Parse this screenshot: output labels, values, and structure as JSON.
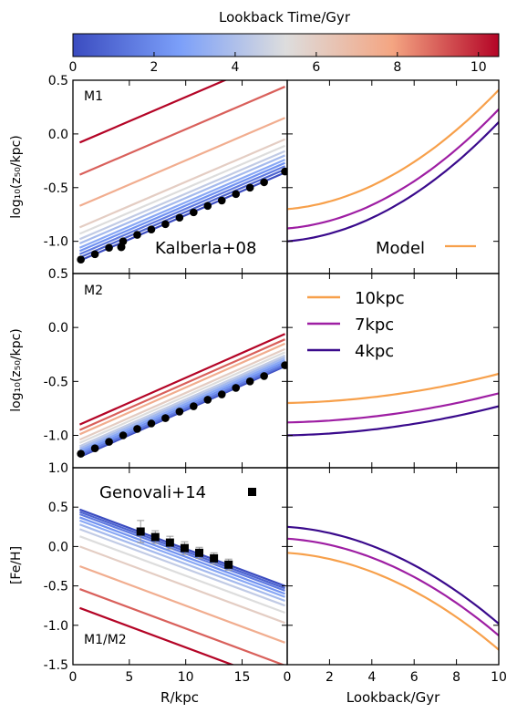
{
  "colorbar": {
    "label": "Lookback Time/Gyr",
    "range": [
      0,
      10.5
    ],
    "ticks": [
      0,
      2,
      4,
      6,
      8,
      10
    ],
    "colormap": "coolwarm",
    "colors": [
      "#3b4cc0",
      "#b4d1ff",
      "#dddddd",
      "#f4a582",
      "#b40426"
    ]
  },
  "labels": {
    "xlabel_left": "R/kpc",
    "xlabel_right": "Lookback/Gyr",
    "ylabel_z50": "log₁₀(z₅₀/kpc)",
    "ylabel_feh": "[Fe/H]"
  },
  "chart_data": [
    {
      "id": "M1-scaleheight",
      "type": "line",
      "annotation": "M1",
      "ylabel": "log₁₀(z₅₀/kpc)",
      "xlim": [
        0,
        19
      ],
      "ylim": [
        -1.3,
        0.5
      ],
      "yticks": [
        -1.0,
        -0.5,
        0.0,
        0.5
      ],
      "lines": {
        "x": [
          0.6,
          18.8
        ],
        "ages": [
          0,
          0.75,
          1.5,
          2.25,
          3,
          3.75,
          4.5,
          5.25,
          6.0,
          7.5,
          9.0,
          10.5
        ],
        "y0": [
          -1.18,
          -1.15,
          -1.12,
          -1.09,
          -1.06,
          -1.02,
          -0.98,
          -0.93,
          -0.87,
          -0.67,
          -0.38,
          -0.08
        ],
        "y1": [
          -0.36,
          -0.33,
          -0.3,
          -0.27,
          -0.24,
          -0.2,
          -0.16,
          -0.11,
          -0.05,
          0.15,
          0.44,
          0.74
        ]
      },
      "points": {
        "name": "Kalberla+08",
        "marker": "circle",
        "x": [
          0.7,
          1.95,
          3.2,
          4.45,
          5.7,
          6.95,
          8.2,
          9.45,
          10.7,
          11.95,
          13.2,
          14.45,
          15.7,
          16.95,
          18.8
        ],
        "y": [
          -1.17,
          -1.12,
          -1.06,
          -1.0,
          -0.94,
          -0.89,
          -0.84,
          -0.78,
          -0.73,
          -0.67,
          -0.62,
          -0.56,
          -0.5,
          -0.45,
          -0.35
        ]
      }
    },
    {
      "id": "M1-model",
      "type": "line",
      "xlim": [
        0,
        10
      ],
      "ylim": [
        -1.3,
        0.5
      ],
      "legend": {
        "label": "Model",
        "color": "#f7a04b"
      },
      "series": [
        {
          "radius": "10kpc",
          "color": "#f7a04b",
          "y0": -0.7,
          "y10": 0.41
        },
        {
          "radius": "7kpc",
          "color": "#9e1ea3",
          "y0": -0.88,
          "y10": 0.23
        },
        {
          "radius": "4kpc",
          "color": "#3a0a8c",
          "y0": -1.0,
          "y10": 0.11
        }
      ]
    },
    {
      "id": "M2-scaleheight",
      "type": "line",
      "annotation": "M2",
      "ylabel": "log₁₀(z₅₀/kpc)",
      "xlim": [
        0,
        19
      ],
      "ylim": [
        -1.3,
        0.5
      ],
      "yticks": [
        -1.0,
        -0.5,
        0.0,
        0.5
      ],
      "lines": {
        "x": [
          0.6,
          18.8
        ],
        "ages": [
          0,
          0.75,
          1.5,
          2.25,
          3,
          3.75,
          4.5,
          5.25,
          6.0,
          7.5,
          9.0,
          10.5
        ],
        "y0": [
          -1.2,
          -1.19,
          -1.18,
          -1.16,
          -1.14,
          -1.12,
          -1.1,
          -1.07,
          -1.04,
          -0.99,
          -0.95,
          -0.9
        ],
        "y1": [
          -0.36,
          -0.35,
          -0.34,
          -0.32,
          -0.3,
          -0.28,
          -0.26,
          -0.23,
          -0.2,
          -0.15,
          -0.11,
          -0.06
        ]
      },
      "points": {
        "name": "Kalberla+08",
        "marker": "circle",
        "x": [
          0.7,
          1.95,
          3.2,
          4.45,
          5.7,
          6.95,
          8.2,
          9.45,
          10.7,
          11.95,
          13.2,
          14.45,
          15.7,
          16.95,
          18.8
        ],
        "y": [
          -1.17,
          -1.12,
          -1.06,
          -1.0,
          -0.94,
          -0.89,
          -0.84,
          -0.78,
          -0.73,
          -0.67,
          -0.62,
          -0.56,
          -0.5,
          -0.45,
          -0.35
        ]
      }
    },
    {
      "id": "M2-model",
      "type": "line",
      "xlim": [
        0,
        10
      ],
      "ylim": [
        -1.3,
        0.5
      ],
      "legend_entries": [
        {
          "label": "10kpc",
          "color": "#f7a04b"
        },
        {
          "label": "7kpc",
          "color": "#9e1ea3"
        },
        {
          "label": "4kpc",
          "color": "#3a0a8c"
        }
      ],
      "series": [
        {
          "radius": "10kpc",
          "color": "#f7a04b",
          "y0": -0.7,
          "y10": -0.43
        },
        {
          "radius": "7kpc",
          "color": "#9e1ea3",
          "y0": -0.88,
          "y10": -0.61
        },
        {
          "radius": "4kpc",
          "color": "#3a0a8c",
          "y0": -1.0,
          "y10": -0.73
        }
      ]
    },
    {
      "id": "FeH-gradient",
      "type": "line",
      "annotation": "M1/M2",
      "xlabel": "R/kpc",
      "ylabel": "[Fe/H]",
      "xlim": [
        0,
        19
      ],
      "ylim": [
        -1.5,
        1.0
      ],
      "xticks": [
        0,
        5,
        10,
        15
      ],
      "yticks": [
        -1.5,
        -1.0,
        -0.5,
        0.0,
        0.5,
        1.0
      ],
      "lines": {
        "x": [
          0.6,
          18.8
        ],
        "ages": [
          0,
          0.75,
          1.5,
          2.25,
          3,
          3.75,
          4.5,
          5.25,
          6.0,
          7.5,
          9.0,
          10.5
        ],
        "y0": [
          0.47,
          0.44,
          0.41,
          0.37,
          0.33,
          0.28,
          0.22,
          0.13,
          0.0,
          -0.25,
          -0.54,
          -0.78
        ],
        "y1": [
          -0.5,
          -0.53,
          -0.56,
          -0.6,
          -0.64,
          -0.69,
          -0.75,
          -0.84,
          -0.97,
          -1.22,
          -1.51,
          -1.75
        ]
      },
      "points": {
        "name": "Genovali+14",
        "marker": "square",
        "x": [
          6.0,
          7.3,
          8.6,
          9.9,
          11.2,
          12.5,
          13.8
        ],
        "y": [
          0.19,
          0.12,
          0.05,
          -0.02,
          -0.08,
          -0.15,
          -0.23
        ],
        "err": [
          0.14,
          0.08,
          0.08,
          0.08,
          0.07,
          0.07,
          0.07
        ]
      }
    },
    {
      "id": "FeH-model",
      "type": "line",
      "xlabel": "Lookback/Gyr",
      "xlim": [
        0,
        10
      ],
      "ylim": [
        -1.5,
        1.0
      ],
      "xticks": [
        0,
        2,
        4,
        6,
        8,
        10
      ],
      "series": [
        {
          "radius": "10kpc",
          "color": "#f7a04b",
          "y0": -0.08,
          "y10": -1.31
        },
        {
          "radius": "7kpc",
          "color": "#9e1ea3",
          "y0": 0.1,
          "y10": -1.13
        },
        {
          "radius": "4kpc",
          "color": "#3a0a8c",
          "y0": 0.25,
          "y10": -0.98
        }
      ]
    }
  ]
}
